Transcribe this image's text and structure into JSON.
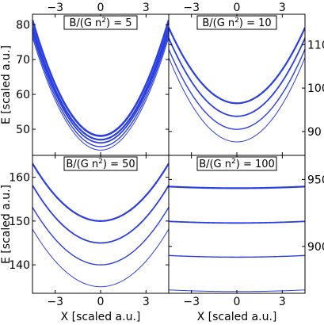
{
  "chart_data": [
    {
      "type": "line",
      "title_box": {
        "pre": "B/(G n",
        "sup": "2",
        "post": ") = 5"
      },
      "xlim": [
        -4.5,
        4.5
      ],
      "ylim": [
        42.5,
        83
      ],
      "x_ticks_top": [
        "−3",
        "0",
        "3"
      ],
      "y_ticks_left": [
        "50",
        "60",
        "70",
        "80"
      ],
      "ylabel": "E [scaled a.u.]",
      "curve_form": "y = min + k x^2",
      "series": [
        {
          "min": 44.0,
          "k": 1.6
        },
        {
          "min": 45.0,
          "k": 1.6
        },
        {
          "min": 46.1,
          "k": 1.6
        },
        {
          "min": 47.0,
          "k": 1.6
        },
        {
          "min": 48.1,
          "k": 1.64
        }
      ]
    },
    {
      "type": "line",
      "title_box": {
        "pre": "B/(G n",
        "sup": "2",
        "post": ") = 10"
      },
      "xlim": [
        -4.5,
        4.5
      ],
      "ylim": [
        84.5,
        117
      ],
      "x_ticks_top": [
        "−3",
        "0",
        "3"
      ],
      "y_ticks_right": [
        "90",
        "100",
        "110"
      ],
      "curve_form": "y = min + k x^2",
      "series": [
        {
          "min": 87.6,
          "k": 0.96
        },
        {
          "min": 90.5,
          "k": 0.91
        },
        {
          "min": 93.5,
          "k": 0.89
        },
        {
          "min": 96.5,
          "k": 0.86
        }
      ]
    },
    {
      "type": "line",
      "title_box": {
        "pre": "B/(G n",
        "sup": "2",
        "post": ") = 50"
      },
      "xlim": [
        -4.5,
        4.5
      ],
      "ylim": [
        133.5,
        165
      ],
      "x_ticks_bottom": [
        "−3",
        "0",
        "3"
      ],
      "y_ticks_left": [
        "140",
        "150",
        "160"
      ],
      "xlabel": "X [scaled a.u.]",
      "ylabel": "E [scaled a.u.]",
      "curve_form": "y = min + k x^2",
      "series": [
        {
          "min": 135.0,
          "k": 0.65
        },
        {
          "min": 140.0,
          "k": 0.65
        },
        {
          "min": 145.0,
          "k": 0.65
        },
        {
          "min": 150.0,
          "k": 0.65
        }
      ]
    },
    {
      "type": "line",
      "title_box": {
        "pre": "B/(G n",
        "sup": "2",
        "post": ") = 100"
      },
      "xlim": [
        -4.5,
        4.5
      ],
      "ylim": [
        865,
        968
      ],
      "x_ticks_bottom": [
        "−3",
        "0",
        "3"
      ],
      "y_ticks_right": [
        "900",
        "950"
      ],
      "xlabel": "X [scaled a.u.]",
      "curve_form": "y = min + k x^2",
      "series": [
        {
          "min": 866.3,
          "k": 0.06
        },
        {
          "min": 892.0,
          "k": 0.06
        },
        {
          "min": 917.5,
          "k": 0.06
        },
        {
          "min": 943.5,
          "k": 0.06
        }
      ]
    }
  ],
  "colors": {
    "line": "#2b3fe0",
    "axis": "#000000",
    "box_fill": "#ffffff"
  }
}
